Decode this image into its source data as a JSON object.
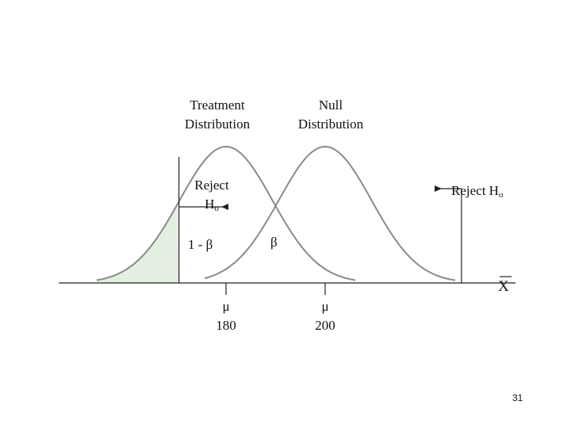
{
  "labels": {
    "treatment_line1": "Treatment",
    "treatment_line2": "Distribution",
    "null_line1": "Null",
    "null_line2": "Distribution",
    "reject_left_line1": "Reject",
    "reject_left_h": "H",
    "reject_left_sub": "o",
    "reject_right_text": "Reject H",
    "reject_right_sub": "o",
    "power": "1 - β",
    "beta": "β",
    "xbar": "X",
    "mu1_symbol": "μ",
    "mu1_value": "180",
    "mu2_symbol": "μ",
    "mu2_value": "200"
  },
  "distributions": {
    "treatment_mean": 180,
    "null_mean": 200,
    "left_critical_value": 170.5,
    "right_critical_value": 227.5
  },
  "colors": {
    "power_fill": "#e3efe0",
    "curve": "#8a8a8a",
    "axis": "#222222"
  },
  "page_number": "31"
}
